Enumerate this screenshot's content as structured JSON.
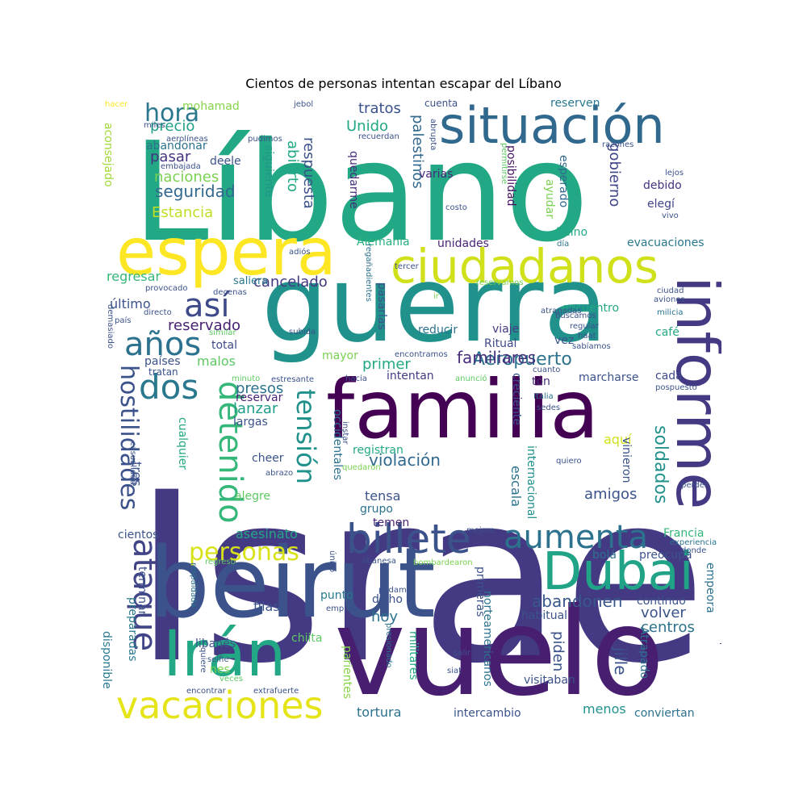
{
  "title": "Cientos de personas intentan escapar del Líbano",
  "palette": [
    "#440154",
    "#3b528b",
    "#21918c",
    "#5ec962",
    "#fde725"
  ],
  "words": [
    {
      "text": "Israel",
      "color": "#443a83"
    },
    {
      "text": "Líbano",
      "color": "#22a884"
    },
    {
      "text": "vuelo",
      "color": "#481f70"
    },
    {
      "text": "guerra",
      "color": "#21918c"
    },
    {
      "text": "beirut",
      "color": "#3b528b"
    },
    {
      "text": "familia",
      "color": "#440154"
    },
    {
      "text": "espera",
      "color": "#fde725"
    },
    {
      "text": "situación",
      "color": "#31688e"
    },
    {
      "text": "informe",
      "color": "#443a83"
    },
    {
      "text": "ciudadanos",
      "color": "#d0e11c"
    },
    {
      "text": "Irán",
      "color": "#22a884"
    },
    {
      "text": "Dubai",
      "color": "#20a386"
    },
    {
      "text": "billete",
      "color": "#3b528b"
    },
    {
      "text": "vacaciones",
      "color": "#e5e419"
    },
    {
      "text": "aumenta",
      "color": "#2c728e"
    },
    {
      "text": "detenido",
      "color": "#35b779"
    },
    {
      "text": "ataque",
      "color": "#414487"
    },
    {
      "text": "dos",
      "color": "#2a788e"
    },
    {
      "text": "años",
      "color": "#2c728e"
    },
    {
      "text": "así",
      "color": "#3e4a89"
    },
    {
      "text": "tensión",
      "color": "#21918c"
    },
    {
      "text": "hostilidades",
      "color": "#3b528b"
    },
    {
      "text": "personas",
      "color": "#d8e219"
    },
    {
      "text": "hora",
      "color": "#2a788e"
    },
    {
      "text": "Aeropuerto",
      "color": "#2c728e"
    },
    {
      "text": "familiares",
      "color": "#472d7b"
    },
    {
      "text": "abandonen",
      "color": "#38588c"
    },
    {
      "text": "violación",
      "color": "#31688e"
    },
    {
      "text": "soldados",
      "color": "#21918c"
    },
    {
      "text": "seguridad",
      "color": "#31688e"
    },
    {
      "text": "cancelado",
      "color": "#443983"
    },
    {
      "text": "reservado",
      "color": "#482173"
    },
    {
      "text": "precio",
      "color": "#1fa088"
    },
    {
      "text": "naciones",
      "color": "#7ad151"
    },
    {
      "text": "pasar",
      "color": "#46337f"
    },
    {
      "text": "Estancia",
      "color": "#bddf26"
    },
    {
      "text": "respuesta",
      "color": "#3b528b"
    },
    {
      "text": "abierto",
      "color": "#22a884"
    },
    {
      "text": "palestinos",
      "color": "#31688e"
    },
    {
      "text": "tratos",
      "color": "#3b528b"
    },
    {
      "text": "Unido",
      "color": "#22a884"
    },
    {
      "text": "varias",
      "color": "#482878"
    },
    {
      "text": "quedarme",
      "color": "#472c7a"
    },
    {
      "text": "posibilidad",
      "color": "#471063"
    },
    {
      "text": "esperado",
      "color": "#31688e"
    },
    {
      "text": "ayudar",
      "color": "#7ad151"
    },
    {
      "text": "gobierno",
      "color": "#404688"
    },
    {
      "text": "debido",
      "color": "#46327e"
    },
    {
      "text": "elegí",
      "color": "#414487"
    },
    {
      "text": "Reino",
      "color": "#22a884"
    },
    {
      "text": "reserven",
      "color": "#2a788e"
    },
    {
      "text": "cuenta",
      "color": "#3b528b"
    },
    {
      "text": "mohamad",
      "color": "#86d549"
    },
    {
      "text": "aconsejado",
      "color": "#a2da37"
    },
    {
      "text": "abandonar",
      "color": "#2c728e"
    },
    {
      "text": "deele",
      "color": "#3b528b"
    },
    {
      "text": "siguiente",
      "color": "#1f988b"
    },
    {
      "text": "Alemania",
      "color": "#2ab07f"
    },
    {
      "text": "unidades",
      "color": "#482475"
    },
    {
      "text": "evacuaciones",
      "color": "#2a788e"
    },
    {
      "text": "regresar",
      "color": "#35b779"
    },
    {
      "text": "saliera",
      "color": "#2a788e"
    },
    {
      "text": "último",
      "color": "#3b528b"
    },
    {
      "text": "malos",
      "color": "#5ec962"
    },
    {
      "text": "total",
      "color": "#3e4a89"
    },
    {
      "text": "países",
      "color": "#3b528b"
    },
    {
      "text": "presos",
      "color": "#2c728e"
    },
    {
      "text": "lanzar",
      "color": "#1f9e89"
    },
    {
      "text": "reservar",
      "color": "#482475"
    },
    {
      "text": "largas",
      "color": "#3b528b"
    },
    {
      "text": "primer",
      "color": "#22a884"
    },
    {
      "text": "mayor",
      "color": "#7ad151"
    },
    {
      "text": "reducir",
      "color": "#2c728e"
    },
    {
      "text": "viaje",
      "color": "#443a83"
    },
    {
      "text": "Ritual",
      "color": "#3e4a89"
    },
    {
      "text": "vez",
      "color": "#3b528b"
    },
    {
      "text": "café",
      "color": "#22a884"
    },
    {
      "text": "encuentro",
      "color": "#22a884"
    },
    {
      "text": "intentan",
      "color": "#443a83"
    },
    {
      "text": "marcharse",
      "color": "#3b528b"
    },
    {
      "text": "cada",
      "color": "#3e4a89"
    },
    {
      "text": "tón",
      "color": "#472d7b"
    },
    {
      "text": "creciente",
      "color": "#3b528b"
    },
    {
      "text": "escala",
      "color": "#2c728e"
    },
    {
      "text": "internacional",
      "color": "#21918c"
    },
    {
      "text": "aquí",
      "color": "#d2e21b"
    },
    {
      "text": "vinieron",
      "color": "#3b528b"
    },
    {
      "text": "amigos",
      "color": "#3b528b"
    },
    {
      "text": "registran",
      "color": "#22a884"
    },
    {
      "text": "tensa",
      "color": "#3b528b"
    },
    {
      "text": "grupo",
      "color": "#2c728e"
    },
    {
      "text": "temen",
      "color": "#482475"
    },
    {
      "text": "occidentales",
      "color": "#2c728e"
    },
    {
      "text": "cheer",
      "color": "#3b528b"
    },
    {
      "text": "alegre",
      "color": "#5ec962"
    },
    {
      "text": "tres",
      "color": "#3b528b"
    },
    {
      "text": "cualquier",
      "color": "#22a884"
    },
    {
      "text": "cientos",
      "color": "#3b528b"
    },
    {
      "text": "asesinato",
      "color": "#22a884"
    },
    {
      "text": "disponible",
      "color": "#2a788e"
    },
    {
      "text": "terminar",
      "color": "#3b528b"
    },
    {
      "text": "preparadas",
      "color": "#2a788e"
    },
    {
      "text": "filas",
      "color": "#3b528b"
    },
    {
      "text": "punto",
      "color": "#2a788e"
    },
    {
      "text": "dicho",
      "color": "#3b528b"
    },
    {
      "text": "hoy",
      "color": "#2c728e"
    },
    {
      "text": "libanés",
      "color": "#3b528b"
    },
    {
      "text": "chiita",
      "color": "#5ec962"
    },
    {
      "text": "nes",
      "color": "#7ad151"
    },
    {
      "text": "parientes",
      "color": "#86d549"
    },
    {
      "text": "militares",
      "color": "#22a884"
    },
    {
      "text": "norteamericanos",
      "color": "#2c728e"
    },
    {
      "text": "primeras",
      "color": "#3b528b"
    },
    {
      "text": "tortura",
      "color": "#2c728e"
    },
    {
      "text": "intercambio",
      "color": "#3b528b"
    },
    {
      "text": "menos",
      "color": "#21918c"
    },
    {
      "text": "conviertan",
      "color": "#2c728e"
    },
    {
      "text": "piden",
      "color": "#3b528b"
    },
    {
      "text": "habitual",
      "color": "#3b528b"
    },
    {
      "text": "visitaban",
      "color": "#3b528b"
    },
    {
      "text": "Atrapado",
      "color": "#2c728e"
    },
    {
      "text": "jille",
      "color": "#3b528b"
    },
    {
      "text": "centros",
      "color": "#2c728e"
    },
    {
      "text": "volver",
      "color": "#3b528b"
    },
    {
      "text": "continuo",
      "color": "#3b528b"
    },
    {
      "text": "empeora",
      "color": "#2c728e"
    },
    {
      "text": "preocupa",
      "color": "#3b528b"
    },
    {
      "text": "Francia",
      "color": "#35b779"
    },
    {
      "text": "bolá",
      "color": "#2c728e"
    },
    {
      "text": "hacer",
      "color": "#fde725"
    },
    {
      "text": "jebol",
      "color": "#3b528b"
    },
    {
      "text": "miles",
      "color": "#3b528b"
    },
    {
      "text": "aerolíneas",
      "color": "#3b528b"
    },
    {
      "text": "pudimos",
      "color": "#3b528b"
    },
    {
      "text": "embajada",
      "color": "#3b528b"
    },
    {
      "text": "recuerdan",
      "color": "#3b528b"
    },
    {
      "text": "abrupta",
      "color": "#3b528b"
    },
    {
      "text": "permitirse",
      "color": "#5ec962"
    },
    {
      "text": "costo",
      "color": "#3b528b"
    },
    {
      "text": "razones",
      "color": "#3b528b"
    },
    {
      "text": "lejos",
      "color": "#3b528b"
    },
    {
      "text": "vivo",
      "color": "#3b528b"
    },
    {
      "text": "día",
      "color": "#2c728e"
    },
    {
      "text": "adiós",
      "color": "#3b528b"
    },
    {
      "text": "regañadientes",
      "color": "#2c728e"
    },
    {
      "text": "tercer",
      "color": "#3b528b"
    },
    {
      "text": "provocado",
      "color": "#3b528b"
    },
    {
      "text": "decenas",
      "color": "#3b528b"
    },
    {
      "text": "reservamos",
      "color": "#7ad151"
    },
    {
      "text": "ir",
      "color": "#7ad151"
    },
    {
      "text": "ciudad",
      "color": "#3b528b"
    },
    {
      "text": "aviones",
      "color": "#3b528b"
    },
    {
      "text": "milicia",
      "color": "#2c728e"
    },
    {
      "text": "directo",
      "color": "#3b528b"
    },
    {
      "text": "demasiado",
      "color": "#3b528b"
    },
    {
      "text": "país",
      "color": "#3b528b"
    },
    {
      "text": "similar",
      "color": "#5ec962"
    },
    {
      "text": "subida",
      "color": "#3b528b"
    },
    {
      "text": "pasarlas",
      "color": "#3b528b"
    },
    {
      "text": "atrapadas",
      "color": "#3b528b"
    },
    {
      "text": "buscamos",
      "color": "#3b528b"
    },
    {
      "text": "regular",
      "color": "#3b528b"
    },
    {
      "text": "haat",
      "color": "#3b528b"
    },
    {
      "text": "sabíamos",
      "color": "#3b528b"
    },
    {
      "text": "encontramos",
      "color": "#3b528b"
    },
    {
      "text": "tratan",
      "color": "#3b528b"
    },
    {
      "text": "minuto",
      "color": "#5ec962"
    },
    {
      "text": "estresante",
      "color": "#3b528b"
    },
    {
      "text": "hacia",
      "color": "#3b528b"
    },
    {
      "text": "anunció",
      "color": "#5ec962"
    },
    {
      "text": "cuanto",
      "color": "#3b528b"
    },
    {
      "text": "pospuesto",
      "color": "#3b528b"
    },
    {
      "text": "Italia",
      "color": "#2c728e"
    },
    {
      "text": "sedes",
      "color": "#3b528b"
    },
    {
      "text": "instar",
      "color": "#3b528b"
    },
    {
      "text": "quiero",
      "color": "#3b528b"
    },
    {
      "text": "casualidad",
      "color": "#3b528b"
    },
    {
      "text": "abrazo",
      "color": "#3b528b"
    },
    {
      "text": "quedaron",
      "color": "#7ad151"
    },
    {
      "text": "perder",
      "color": "#3b528b"
    },
    {
      "text": "mejore",
      "color": "#3b528b"
    },
    {
      "text": "experiencia",
      "color": "#2c728e"
    },
    {
      "text": "donde",
      "color": "#3b528b"
    },
    {
      "text": "regreso",
      "color": "#5ec962"
    },
    {
      "text": "único",
      "color": "#3b528b"
    },
    {
      "text": "libanesa",
      "color": "#3b528b"
    },
    {
      "text": "bombardearon",
      "color": "#7ad151"
    },
    {
      "text": "respaldada",
      "color": "#2c728e"
    },
    {
      "text": "empleo",
      "color": "#3b528b"
    },
    {
      "text": "podamos",
      "color": "#3b528b"
    },
    {
      "text": "diplomáticas",
      "color": "#3b528b"
    },
    {
      "text": "salir",
      "color": "#3b528b"
    },
    {
      "text": "presionado",
      "color": "#2c728e"
    },
    {
      "text": "selfie",
      "color": "#3b528b"
    },
    {
      "text": "quiere",
      "color": "#3b528b"
    },
    {
      "text": "veces",
      "color": "#5ec962"
    },
    {
      "text": "siat",
      "color": "#3b528b"
    },
    {
      "text": "encontrar",
      "color": "#3b528b"
    },
    {
      "text": "extrafuerte",
      "color": "#3b528b"
    }
  ]
}
